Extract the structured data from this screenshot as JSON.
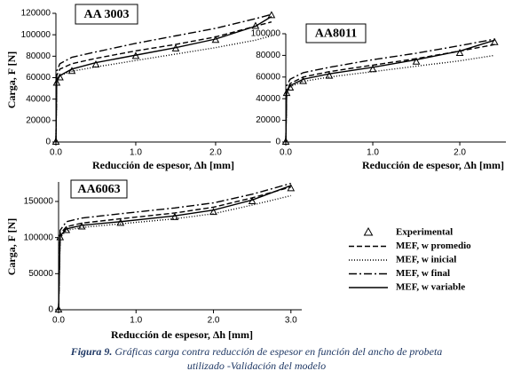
{
  "chart_data": [
    {
      "type": "line",
      "title": "AA 3003",
      "xlabel": "Reducción de espesor, Δh [mm]",
      "ylabel": "Carga, F [N]",
      "x": [
        0,
        0.01,
        0.05,
        0.2,
        0.5,
        1.0,
        1.5,
        2.0,
        2.5,
        2.7
      ],
      "xlim": [
        0,
        2.69
      ],
      "ylim": [
        0,
        120000
      ],
      "xticks": [
        {
          "value": 0,
          "label": "0.0"
        },
        {
          "value": 1,
          "label": "1.0"
        },
        {
          "value": 2,
          "label": "2.0"
        }
      ],
      "yticks": [
        0,
        20000,
        40000,
        60000,
        80000,
        100000,
        120000
      ],
      "series": [
        {
          "color": "#000000",
          "marker": "triangle",
          "values": [
            0,
            55000,
            60000,
            66000,
            72000,
            80000,
            87000,
            95000,
            108000,
            118000
          ]
        },
        {
          "color": "#000000",
          "dash": "6,3",
          "values": [
            0,
            62000,
            68000,
            73000,
            78000,
            85000,
            91000,
            98000,
            108000,
            112000
          ]
        },
        {
          "color": "#000000",
          "dash": "1,2",
          "values": [
            0,
            58000,
            62000,
            66000,
            70000,
            76000,
            82000,
            88000,
            95000,
            99000
          ]
        },
        {
          "color": "#000000",
          "dash": "9,3,2,3",
          "values": [
            0,
            66000,
            73000,
            79000,
            84000,
            92000,
            99000,
            106000,
            115000,
            119000
          ]
        },
        {
          "color": "#000000",
          "values": [
            0,
            56000,
            62000,
            68000,
            74000,
            81000,
            88000,
            96000,
            108000,
            117000
          ]
        }
      ]
    },
    {
      "type": "line",
      "title": "AA8011",
      "xlabel": "Reducción de espesor, Δh [mm]",
      "x": [
        0,
        0.01,
        0.05,
        0.2,
        0.5,
        1.0,
        1.5,
        2.0,
        2.4
      ],
      "xlim": [
        0,
        2.53
      ],
      "ylim": [
        0,
        100000
      ],
      "xticks": [
        {
          "value": 0,
          "label": "0.0"
        },
        {
          "value": 1,
          "label": "1.0"
        },
        {
          "value": 2,
          "label": "2.0"
        }
      ],
      "yticks": [
        0,
        20000,
        40000,
        60000,
        80000,
        100000
      ],
      "series": [
        {
          "color": "#000000",
          "marker": "triangle",
          "values": [
            0,
            45000,
            50000,
            56000,
            61000,
            67000,
            74000,
            82000,
            92000
          ]
        },
        {
          "color": "#000000",
          "dash": "6,3",
          "values": [
            0,
            48000,
            54000,
            60000,
            65000,
            71000,
            77000,
            84000,
            90000
          ]
        },
        {
          "color": "#000000",
          "dash": "1,2",
          "values": [
            0,
            46000,
            51000,
            56000,
            60000,
            65000,
            70000,
            75000,
            80000
          ]
        },
        {
          "color": "#000000",
          "dash": "9,3,2,3",
          "values": [
            0,
            52000,
            58000,
            64000,
            69000,
            76000,
            82000,
            89000,
            95000
          ]
        },
        {
          "color": "#000000",
          "values": [
            0,
            46000,
            52000,
            58000,
            63000,
            69000,
            76000,
            84000,
            94000
          ]
        }
      ]
    },
    {
      "type": "line",
      "title": "AA6063",
      "xlabel": "Reducción de espesor, Δh [mm]",
      "ylabel": "Carga, F [N]",
      "x": [
        0,
        0.02,
        0.1,
        0.3,
        0.8,
        1.5,
        2.0,
        2.5,
        3.0
      ],
      "xlim": [
        0,
        3.14
      ],
      "ylim": [
        0,
        177000
      ],
      "xticks": [
        {
          "value": 0,
          "label": "0.0"
        },
        {
          "value": 1,
          "label": "1.0"
        },
        {
          "value": 2,
          "label": "2.0"
        },
        {
          "value": 3,
          "label": "3.0"
        }
      ],
      "yticks": [
        0,
        50000,
        100000,
        150000
      ],
      "series": [
        {
          "name": "Experimental",
          "color": "#000000",
          "marker": "triangle",
          "values": [
            0,
            100000,
            110000,
            115000,
            120000,
            128000,
            135000,
            150000,
            168000
          ]
        },
        {
          "name": "MEF, w promedio",
          "color": "#000000",
          "dash": "6,3",
          "values": [
            0,
            105000,
            115000,
            120000,
            126000,
            134000,
            142000,
            155000,
            170000
          ]
        },
        {
          "name": "MEF, w inicial",
          "color": "#000000",
          "dash": "1,2",
          "values": [
            0,
            100000,
            110000,
            114000,
            119000,
            126000,
            133000,
            145000,
            158000
          ]
        },
        {
          "name": "MEF, w final",
          "color": "#000000",
          "dash": "9,3,2,3",
          "values": [
            0,
            110000,
            122000,
            127000,
            133000,
            141000,
            148000,
            160000,
            175000
          ]
        },
        {
          "name": "MEF, w variable",
          "color": "#000000",
          "values": [
            0,
            102000,
            112000,
            117000,
            122000,
            130000,
            138000,
            152000,
            172000
          ]
        }
      ]
    }
  ],
  "caption": {
    "label": "Figura 9.",
    "lines": [
      "Gráficas carga contra reducción de espesor en función del ancho de probeta",
      "utilizado -Validación del modelo"
    ]
  }
}
